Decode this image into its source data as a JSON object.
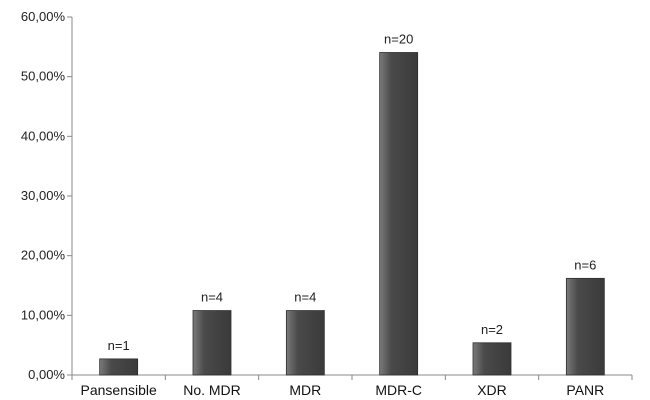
{
  "chart_data": {
    "type": "bar",
    "categories": [
      "Pansensible",
      "No. MDR",
      "MDR",
      "MDR-C",
      "XDR",
      "PANR"
    ],
    "values": [
      2.7,
      10.8,
      10.8,
      54.05,
      5.4,
      16.2
    ],
    "data_labels": [
      "n=1",
      "n=4",
      "n=4",
      "n=20",
      "n=2",
      "n=6"
    ],
    "y_ticks": [
      "0,00%",
      "10,00%",
      "20,00%",
      "30,00%",
      "40,00%",
      "50,00%",
      "60,00%"
    ],
    "ylim": [
      0,
      60
    ],
    "grid": false,
    "legend": "none",
    "colors": {
      "bar": "#4a4a4a",
      "bar_highlight": "#7a7a7a",
      "axis": "#888888"
    }
  }
}
